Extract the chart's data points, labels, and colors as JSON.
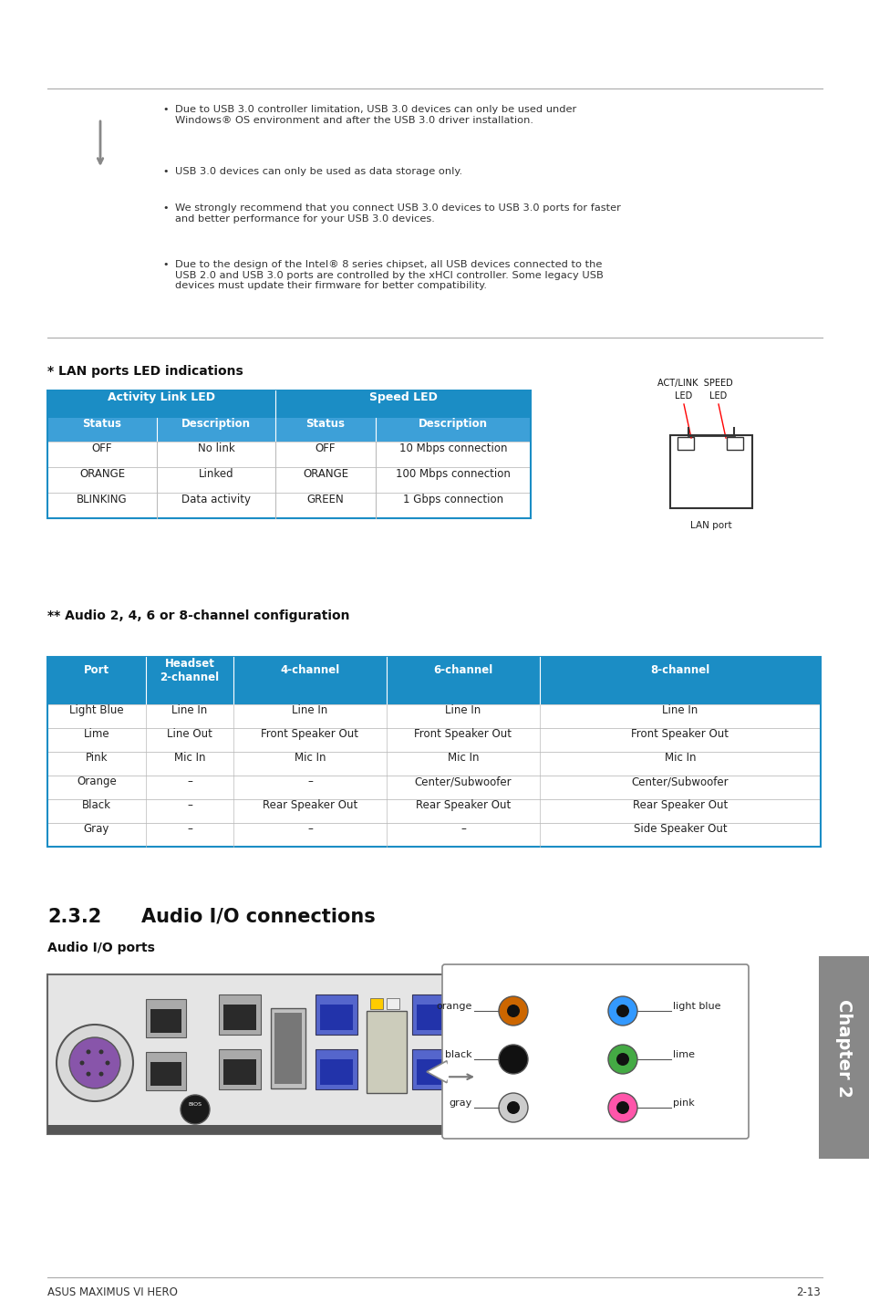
{
  "page_bg": "#ffffff",
  "note_bullets": [
    "Due to USB 3.0 controller limitation, USB 3.0 devices can only be used under\nWindows® OS environment and after the USB 3.0 driver installation.",
    "USB 3.0 devices can only be used as data storage only.",
    "We strongly recommend that you connect USB 3.0 devices to USB 3.0 ports for faster\nand better performance for your USB 3.0 devices.",
    "Due to the design of the Intel® 8 series chipset, all USB devices connected to the\nUSB 2.0 and USB 3.0 ports are controlled by the xHCI controller. Some legacy USB\ndevices must update their firmware for better compatibility."
  ],
  "lan_title": "* LAN ports LED indications",
  "lan_header_color": "#1b8dc5",
  "lan_subheader_color": "#3da0d8",
  "lan_rows": [
    [
      "OFF",
      "No link",
      "OFF",
      "10 Mbps connection"
    ],
    [
      "ORANGE",
      "Linked",
      "ORANGE",
      "100 Mbps connection"
    ],
    [
      "BLINKING",
      "Data activity",
      "GREEN",
      "1 Gbps connection"
    ]
  ],
  "audio_title": "** Audio 2, 4, 6 or 8-channel configuration",
  "audio_header_color": "#1b8dc5",
  "audio_headers": [
    "Port",
    "Headset\n2-channel",
    "4-channel",
    "6-channel",
    "8-channel"
  ],
  "audio_rows": [
    [
      "Light Blue",
      "Line In",
      "Line In",
      "Line In",
      "Line In"
    ],
    [
      "Lime",
      "Line Out",
      "Front Speaker Out",
      "Front Speaker Out",
      "Front Speaker Out"
    ],
    [
      "Pink",
      "Mic In",
      "Mic In",
      "Mic In",
      "Mic In"
    ],
    [
      "Orange",
      "–",
      "–",
      "Center/Subwoofer",
      "Center/Subwoofer"
    ],
    [
      "Black",
      "–",
      "Rear Speaker Out",
      "Rear Speaker Out",
      "Rear Speaker Out"
    ],
    [
      "Gray",
      "–",
      "–",
      "–",
      "Side Speaker Out"
    ]
  ],
  "section_title": "2.3.2",
  "section_subtitle": "Audio I/O connections",
  "subsection_title": "Audio I/O ports",
  "footer_left": "ASUS MAXIMUS VI HERO",
  "footer_right": "2-13",
  "chapter_label": "Chapter 2",
  "chapter_bg": "#888888",
  "audio_port_colors_left": [
    "#cc6600",
    "#111111",
    "#cccccc"
  ],
  "audio_port_colors_right": [
    "#3399ff",
    "#44aa44",
    "#ff55aa"
  ],
  "callout_labels_left": [
    "orange",
    "black",
    "gray"
  ],
  "callout_labels_right": [
    "light blue",
    "lime",
    "pink"
  ]
}
